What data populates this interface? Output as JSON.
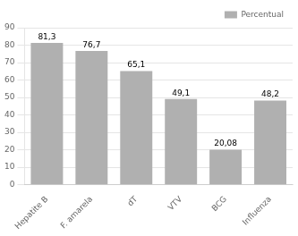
{
  "chart_data": {
    "type": "bar",
    "categories": [
      "Hepatite B",
      "F. amarela",
      "dT",
      "VTV",
      "BCG",
      "Influenza"
    ],
    "series": [
      {
        "name": "Percentual",
        "color": "#b0b0b0",
        "values": [
          81.3,
          76.7,
          65.1,
          49.1,
          20.08,
          48.2
        ],
        "value_labels": [
          "81,3",
          "76,7",
          "65,1",
          "49,1",
          "20,08",
          "48,2"
        ]
      }
    ],
    "ylim": [
      0,
      90
    ],
    "yticks": [
      0,
      10,
      20,
      30,
      40,
      50,
      60,
      70,
      80,
      90
    ],
    "grid": true,
    "legend": "upper right",
    "data_labels": true
  }
}
